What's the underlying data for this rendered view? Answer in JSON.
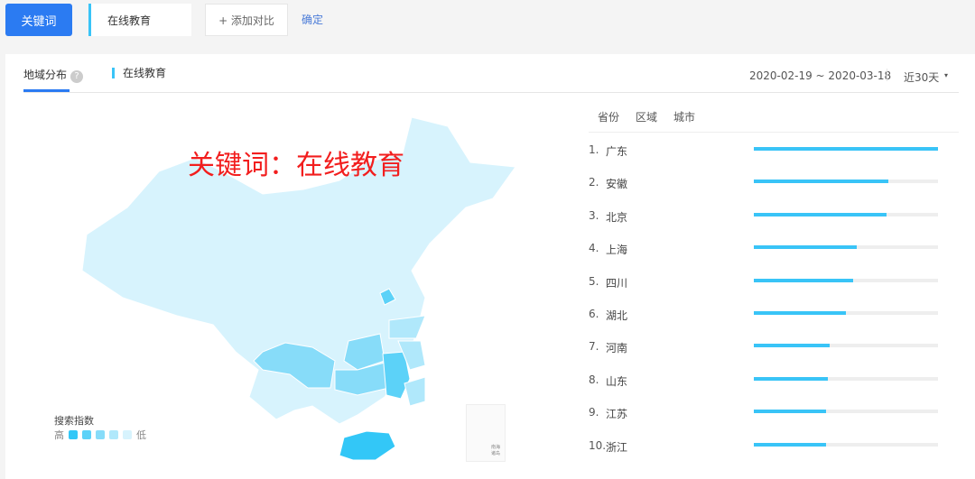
{
  "toolbar": {
    "keyword_label": "关键词",
    "keyword_value": "在线教育",
    "add_compare": "+ 添加对比",
    "confirm": "确定"
  },
  "panel": {
    "tab": "地域分布",
    "help": "?",
    "series": "在线教育",
    "date_range": "2020-02-19 ~ 2020-03-18",
    "period": "近30天",
    "period_caret": "▾",
    "subtabs": [
      "省份",
      "区域",
      "城市"
    ],
    "overlay_title": "关键词：在线教育",
    "legend": {
      "title": "搜索指数",
      "high": "高",
      "low": "低",
      "colors": [
        "#33c7f7",
        "#5cd2f8",
        "#87dcf9",
        "#b0e8fb",
        "#d7f3fd"
      ]
    },
    "inset": "南海诸岛"
  },
  "colors": {
    "accent": "#2b7bf2",
    "bar": "#39c4f7",
    "track": "#eeeeee"
  },
  "ranking": [
    {
      "rank": "1.",
      "name": "广东",
      "value": 100
    },
    {
      "rank": "2.",
      "name": "安徽",
      "value": 73
    },
    {
      "rank": "3.",
      "name": "北京",
      "value": 72
    },
    {
      "rank": "4.",
      "name": "上海",
      "value": 56
    },
    {
      "rank": "5.",
      "name": "四川",
      "value": 54
    },
    {
      "rank": "6.",
      "name": "湖北",
      "value": 50
    },
    {
      "rank": "7.",
      "name": "河南",
      "value": 41
    },
    {
      "rank": "8.",
      "name": "山东",
      "value": 40
    },
    {
      "rank": "9.",
      "name": "江苏",
      "value": 39
    },
    {
      "rank": "10.",
      "name": "浙江",
      "value": 39
    }
  ]
}
